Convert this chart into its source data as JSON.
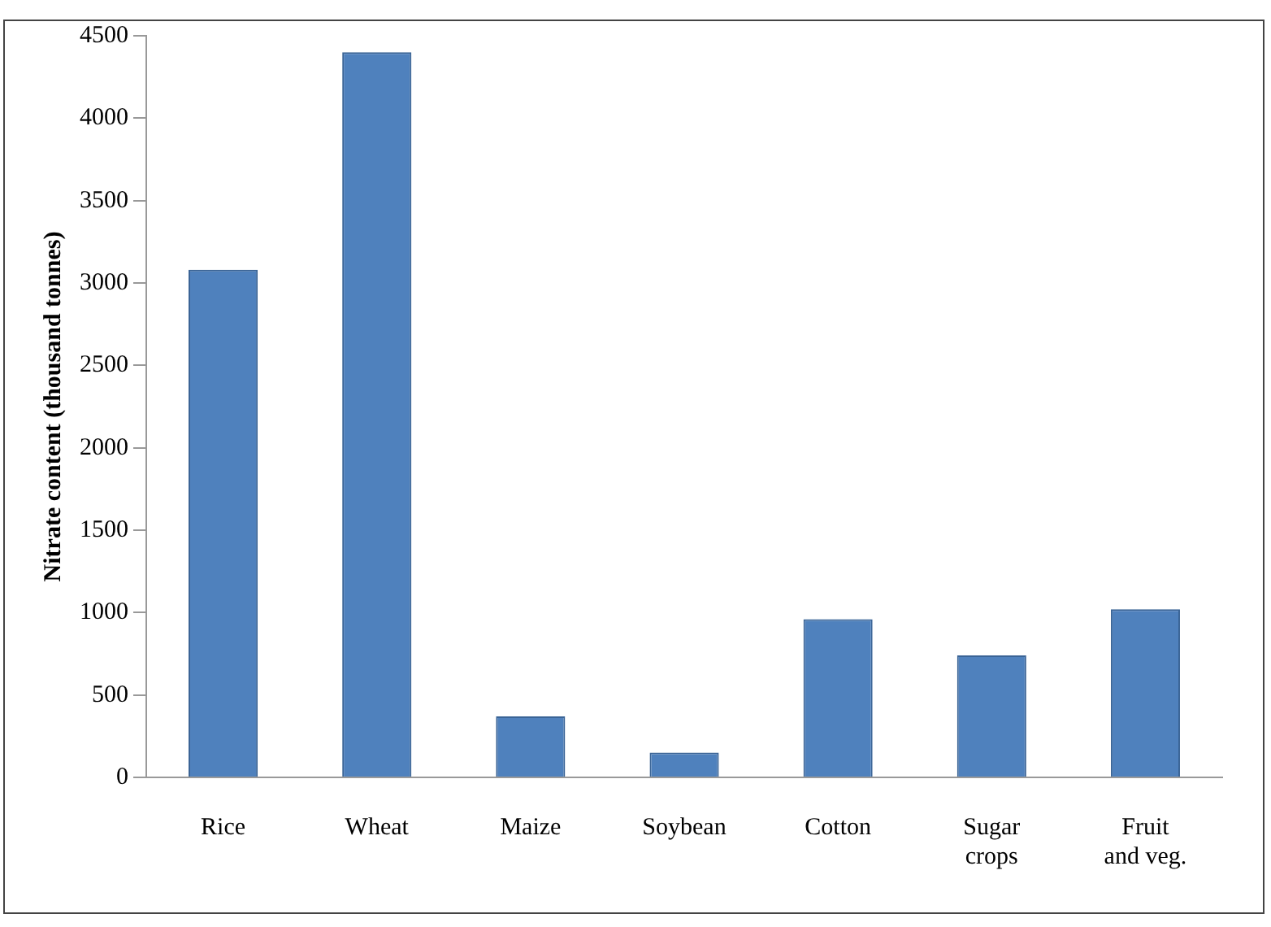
{
  "chart_data": {
    "type": "bar",
    "ylabel": "Nitrate content (thousand tonnes)",
    "categories": [
      "Rice",
      "Wheat",
      "Maize",
      "Soybean",
      "Cotton",
      [
        "Sugar",
        "crops"
      ],
      [
        "Fruit",
        "and veg."
      ]
    ],
    "values": [
      3080,
      4400,
      370,
      150,
      960,
      740,
      1020
    ],
    "color": "#4f81bd",
    "ylim": [
      0,
      4500
    ],
    "yticks": [
      0,
      500,
      1000,
      1500,
      2000,
      2500,
      3000,
      3500,
      4000,
      4500
    ],
    "grid": false,
    "legend": false
  }
}
